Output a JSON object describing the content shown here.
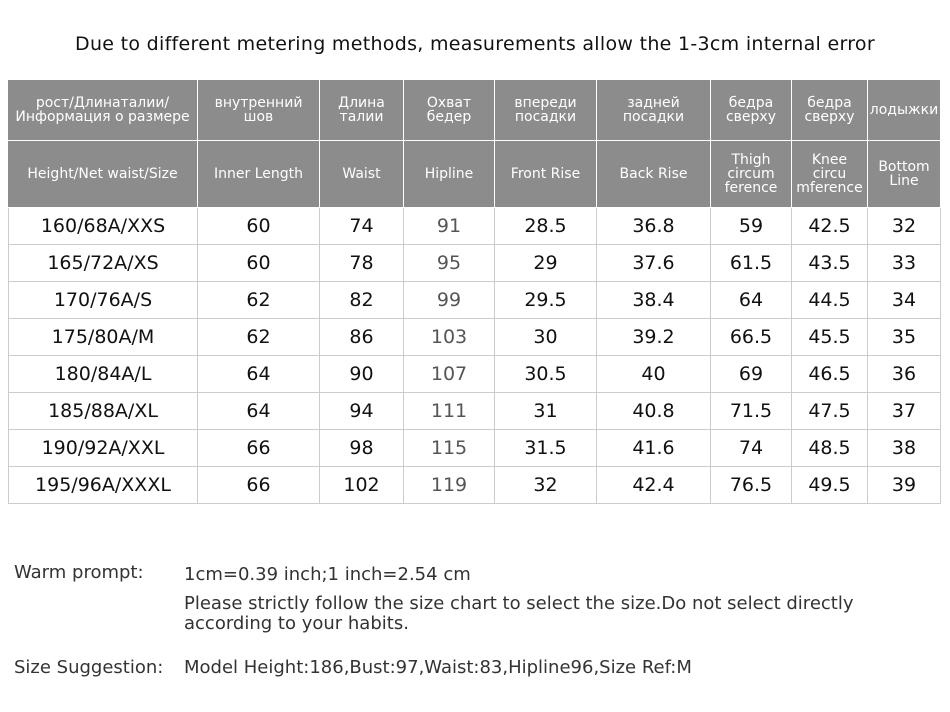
{
  "header": {
    "title": "Due to different metering methods, measurements allow the 1-3cm internal error"
  },
  "table": {
    "columns": [
      {
        "ru": "рост/Длинаталии/\nИнформация о размере",
        "en": "Height/Net waist/Size"
      },
      {
        "ru": "внутренний\nшов",
        "en": "Inner  Length"
      },
      {
        "ru": "Длина\nталии",
        "en": "Waist"
      },
      {
        "ru": "Охват\nбедер",
        "en": "Hipline"
      },
      {
        "ru": "впереди\nпосадки",
        "en": "Front Rise"
      },
      {
        "ru": "задней\nпосадки",
        "en": "Back Rise"
      },
      {
        "ru": "бедра\nсверху",
        "en": "Thigh\ncircum\nference"
      },
      {
        "ru": "бедра\nсверху",
        "en": "Knee\ncircu\nmference"
      },
      {
        "ru": "лодыжки",
        "en": "Bottom\nLine"
      }
    ],
    "rows": [
      [
        "160/68A/XXS",
        60,
        74,
        91,
        28.5,
        36.8,
        59,
        42.5,
        32
      ],
      [
        "165/72A/XS",
        60,
        78,
        95,
        29,
        37.6,
        61.5,
        43.5,
        33
      ],
      [
        "170/76A/S",
        62,
        82,
        99,
        29.5,
        38.4,
        64,
        44.5,
        34
      ],
      [
        "175/80A/M",
        62,
        86,
        103,
        30,
        39.2,
        66.5,
        45.5,
        35
      ],
      [
        "180/84A/L",
        64,
        90,
        107,
        30.5,
        40,
        69,
        46.5,
        36
      ],
      [
        "185/88A/XL",
        64,
        94,
        111,
        31,
        40.8,
        71.5,
        47.5,
        37
      ],
      [
        "190/92A/XXL",
        66,
        98,
        115,
        31.5,
        41.6,
        74,
        48.5,
        38
      ],
      [
        "195/96A/XXXL",
        66,
        102,
        119,
        32,
        42.4,
        76.5,
        49.5,
        39
      ]
    ]
  },
  "notes": {
    "warm_prompt": {
      "label": "Warm prompt:",
      "lines": [
        "1cm=0.39 inch;1 inch=2.54 cm",
        "Please strictly follow the size chart  to select the size.Do not select directly according to your habits."
      ]
    },
    "size_suggestion": {
      "label": "Size Suggestion:",
      "text": "Model Height:186,Bust:97,Waist:83,Hipline96,Size Ref:M"
    }
  }
}
